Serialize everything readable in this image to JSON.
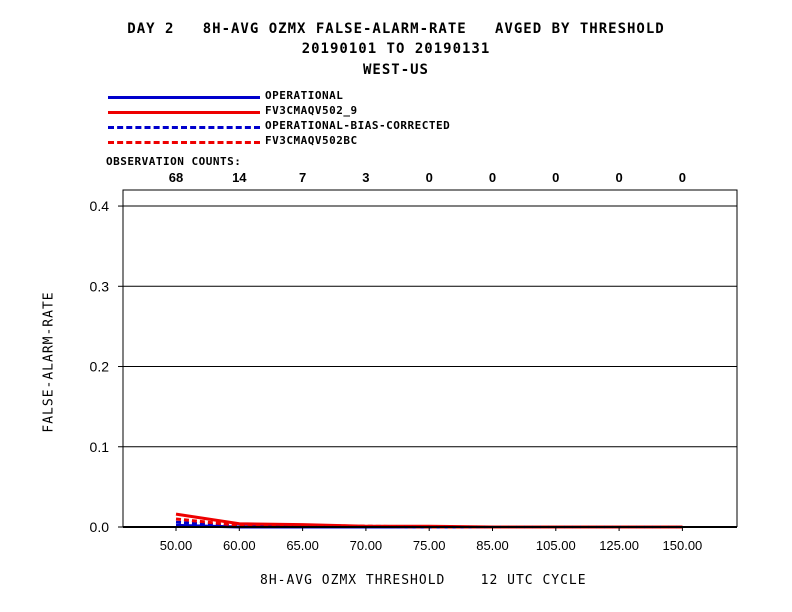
{
  "chart_data": {
    "type": "line",
    "title": "DAY 2   8H-AVG OZMX FALSE-ALARM-RATE   AVGED BY THRESHOLD",
    "subtitle": "20190101 TO 20190131",
    "region": "WEST-US",
    "xlabel": "8H-AVG OZMX THRESHOLD    12 UTC CYCLE",
    "ylabel": "FALSE-ALARM-RATE",
    "categories": [
      "50.00",
      "60.00",
      "65.00",
      "70.00",
      "75.00",
      "85.00",
      "105.00",
      "125.00",
      "150.00"
    ],
    "observation_counts_label": "OBSERVATION COUNTS:",
    "observation_counts": [
      "68",
      "14",
      "7",
      "3",
      "0",
      "0",
      "0",
      "0",
      "0"
    ],
    "yticks": [
      "0.0",
      "0.1",
      "0.2",
      "0.3",
      "0.4"
    ],
    "ylim": [
      0,
      0.42
    ],
    "grid": true,
    "legend_position": "top-left",
    "series": [
      {
        "name": "OPERATIONAL",
        "color": "#0000cc",
        "dash": false,
        "values": [
          0.002,
          0.0,
          0.0,
          0.0,
          0.0,
          0.0,
          0.0,
          0.0,
          0.0
        ]
      },
      {
        "name": "FV3CMAQV502_9",
        "color": "#ee0000",
        "dash": false,
        "values": [
          0.016,
          0.004,
          0.003,
          0.001,
          0.001,
          0.0,
          0.0,
          0.0,
          0.0
        ]
      },
      {
        "name": "OPERATIONAL-BIAS-CORRECTED",
        "color": "#0000cc",
        "dash": true,
        "values": [
          0.006,
          0.001,
          0.0,
          0.0,
          0.0,
          0.0,
          0.0,
          0.0,
          0.0
        ]
      },
      {
        "name": "FV3CMAQV502BC",
        "color": "#ee0000",
        "dash": true,
        "values": [
          0.01,
          0.002,
          0.002,
          0.001,
          0.0,
          0.0,
          0.0,
          0.0,
          0.0
        ]
      }
    ]
  }
}
